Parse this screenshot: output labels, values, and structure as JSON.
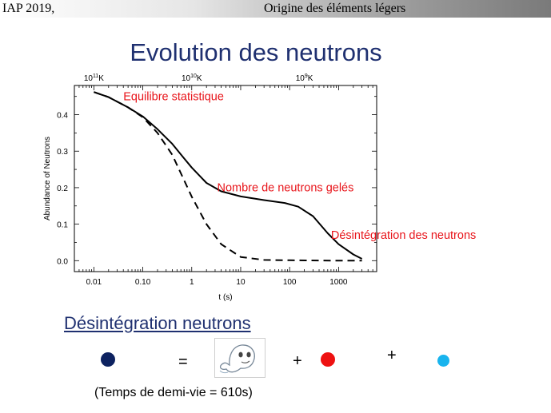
{
  "header": {
    "left": "IAP 2019,",
    "right": "Origine des éléments légers"
  },
  "title": "Evolution des neutrons",
  "chart_data": {
    "type": "line",
    "xlabel": "t (s)",
    "ylabel": "Abundance of Neutrons",
    "x_scale": "log",
    "xlim": [
      0.004,
      6000
    ],
    "ylim": [
      -0.03,
      0.48
    ],
    "x_ticks": [
      {
        "v": 0.01,
        "label": "0.01"
      },
      {
        "v": 0.1,
        "label": "0.10"
      },
      {
        "v": 1,
        "label": "1"
      },
      {
        "v": 10,
        "label": "10"
      },
      {
        "v": 100,
        "label": "100"
      },
      {
        "v": 1000,
        "label": "1000"
      }
    ],
    "y_ticks": [
      {
        "v": 0.0,
        "label": "0.0"
      },
      {
        "v": 0.1,
        "label": "0.1"
      },
      {
        "v": 0.2,
        "label": "0.2"
      },
      {
        "v": 0.3,
        "label": "0.3"
      },
      {
        "v": 0.4,
        "label": "0.4"
      }
    ],
    "top_axis": [
      {
        "x": 0.01,
        "label": "11"
      },
      {
        "x": 1,
        "label": "10"
      },
      {
        "x": 200,
        "label": "9"
      }
    ],
    "top_axis_base": "10",
    "top_axis_unit": "K",
    "series": [
      {
        "style": "solid",
        "points": [
          [
            0.01,
            0.462
          ],
          [
            0.02,
            0.448
          ],
          [
            0.05,
            0.42
          ],
          [
            0.1,
            0.395
          ],
          [
            0.2,
            0.36
          ],
          [
            0.4,
            0.32
          ],
          [
            0.7,
            0.28
          ],
          [
            1,
            0.255
          ],
          [
            2,
            0.213
          ],
          [
            4,
            0.19
          ],
          [
            10,
            0.176
          ],
          [
            30,
            0.166
          ],
          [
            80,
            0.158
          ],
          [
            150,
            0.148
          ],
          [
            300,
            0.122
          ],
          [
            600,
            0.075
          ],
          [
            1000,
            0.045
          ],
          [
            2000,
            0.017
          ],
          [
            3000,
            0.005
          ]
        ]
      },
      {
        "style": "dashed",
        "points": [
          [
            0.01,
            0.462
          ],
          [
            0.02,
            0.448
          ],
          [
            0.05,
            0.42
          ],
          [
            0.1,
            0.393
          ],
          [
            0.2,
            0.35
          ],
          [
            0.4,
            0.29
          ],
          [
            0.7,
            0.22
          ],
          [
            1,
            0.175
          ],
          [
            2,
            0.1
          ],
          [
            4,
            0.045
          ],
          [
            10,
            0.01
          ],
          [
            30,
            0.002
          ],
          [
            100,
            0.001
          ],
          [
            1000,
            0.0
          ],
          [
            3000,
            0.0
          ]
        ]
      }
    ],
    "annotations": [
      {
        "text": "Equilibre statistique",
        "x": 0.04,
        "y": 0.44
      },
      {
        "text": "Nombre de neutrons gelés",
        "x": 3.3,
        "y": 0.19
      },
      {
        "text": "Désintégration des neutrons",
        "x": 700,
        "y": 0.06
      }
    ],
    "annotation_color": "#e8141a"
  },
  "subtitle": "Désintégration neutrons",
  "equation": {
    "equals": "=",
    "plus1": "+",
    "plus2": "+",
    "neutron_color": "#0d2260",
    "proton_color": "#ee1111",
    "neutrino_color": "#18b4ee",
    "ghost_icon": "ghost-icon"
  },
  "half_life_note": "(Temps de demi-vie = 610s)"
}
